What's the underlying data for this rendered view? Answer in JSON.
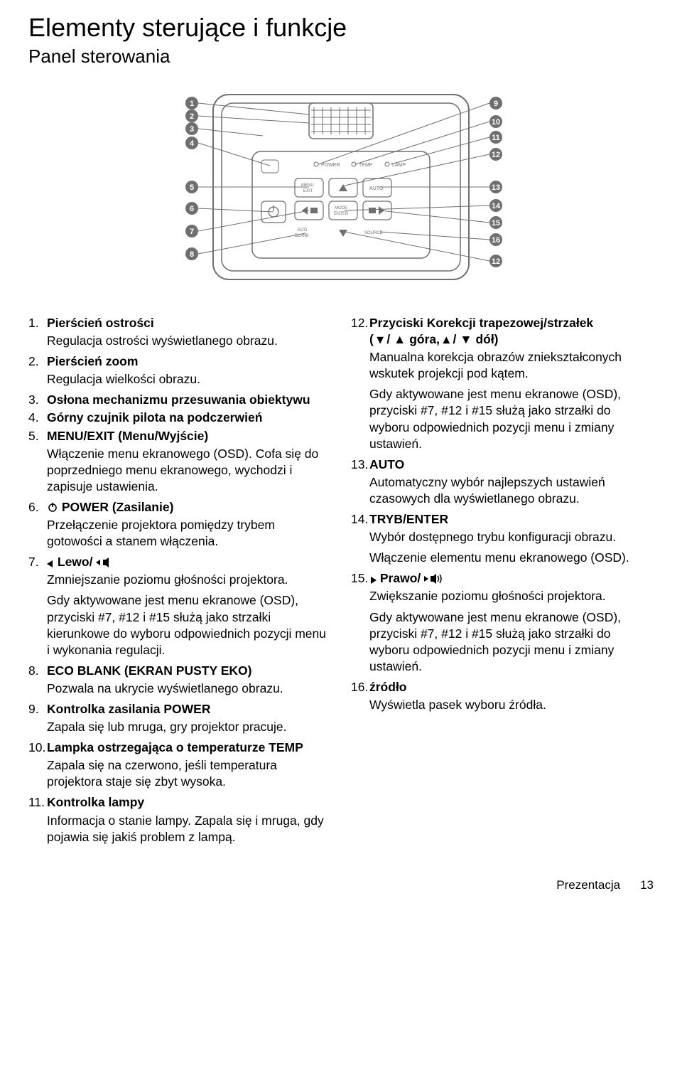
{
  "heading": "Elementy sterujące i funkcje",
  "subheading": "Panel sterowania",
  "diagram": {
    "left_numbers": [
      "1",
      "2",
      "3",
      "4",
      "5",
      "6",
      "7",
      "8"
    ],
    "right_numbers": [
      "9",
      "10",
      "11",
      "12",
      "13",
      "14",
      "15",
      "16",
      "12"
    ],
    "panel_labels": {
      "power": "POWER",
      "temp": "TEMP",
      "lamp": "LAMP",
      "menu_exit1": "MENU",
      "menu_exit2": "EXIT",
      "auto": "AUTO",
      "mode1": "MODE",
      "mode2": "ENTER",
      "eco1": "ECO",
      "eco2": "BLANK",
      "source": "SOURCE"
    },
    "colors": {
      "stroke": "#6f6f6f",
      "fill": "#ffffff",
      "badge_fill": "#6f6f6f",
      "badge_text": "#ffffff",
      "label_text": "#6f6f6f"
    }
  },
  "left_col": [
    {
      "n": "1.",
      "t": "Pierścień ostrości",
      "d": "Regulacja ostrości wyświetlanego obrazu."
    },
    {
      "n": "2.",
      "t": "Pierścień zoom",
      "d": "Regulacja wielkości obrazu."
    },
    {
      "n": "3.",
      "t": "Osłona mechanizmu przesuwania obiektywu",
      "d": ""
    },
    {
      "n": "4.",
      "t": "Górny czujnik pilota na podczerwień",
      "d": ""
    },
    {
      "n": "5.",
      "t": "MENU/EXIT (Menu/Wyjście)",
      "d": "Włączenie menu ekranowego (OSD). Cofa się do poprzedniego menu ekranowego, wychodzi i zapisuje ustawienia."
    },
    {
      "n": "6.",
      "t": "POWER (Zasilanie)",
      "icon": "power",
      "d": "Przełączenie projektora pomiędzy trybem gotowości a stanem włączenia."
    },
    {
      "n": "7.",
      "t": "Lewo/",
      "icon": "left_vol",
      "d": "Zmniejszanie poziomu głośności projektora.\nGdy aktywowane jest menu ekranowe (OSD), przyciski #7, #12 i #15 służą jako strzałki kierunkowe do wyboru odpowiednich pozycji menu i wykonania regulacji."
    },
    {
      "n": "8.",
      "t": "ECO BLANK (EKRAN PUSTY EKO)",
      "d": "Pozwala na ukrycie wyświetlanego obrazu."
    },
    {
      "n": "9.",
      "t": "Kontrolka zasilania POWER",
      "d": "Zapala się lub mruga, gry projektor pracuje."
    },
    {
      "n": "10.",
      "t": "Lampka ostrzegająca o temperaturze TEMP",
      "d": "Zapala się na czerwono, jeśli temperatura projektora staje się zbyt wysoka."
    },
    {
      "n": "11.",
      "t": "Kontrolka lampy",
      "d": "Informacja o stanie lampy. Zapala się i mruga, gdy pojawia się jakiś problem z lampą."
    }
  ],
  "right_col": [
    {
      "n": "12.",
      "t": "Przyciski Korekcji trapezowej/strzałek",
      "t2": "( ▾ / ▲ góra,  ▴ / ▼ dół)",
      "icon": "trapez",
      "d": "Manualna korekcja obrazów zniekształconych wskutek projekcji pod kątem.\nGdy aktywowane jest menu ekranowe (OSD), przyciski #7, #12 i #15 służą jako strzałki do wyboru odpowiednich pozycji menu i zmiany ustawień."
    },
    {
      "n": "13.",
      "t": "AUTO",
      "d": "Automatyczny wybór najlepszych ustawień czasowych dla wyświetlanego obrazu."
    },
    {
      "n": "14.",
      "t": "TRYB/ENTER",
      "d": "Wybór dostępnego trybu konfiguracji obrazu.\nWłączenie elementu menu ekranowego (OSD)."
    },
    {
      "n": "15.",
      "t": "Prawo/",
      "icon": "right_vol",
      "d": "Zwiększanie poziomu głośności projektora.\nGdy aktywowane jest menu ekranowe (OSD), przyciski #7, #12 i #15 służą jako strzałki do wyboru odpowiednich pozycji menu i zmiany ustawień."
    },
    {
      "n": "16.",
      "t": "źródło",
      "d": "Wyświetla pasek wyboru źródła."
    }
  ],
  "footer": {
    "section": "Prezentacja",
    "page": "13"
  }
}
